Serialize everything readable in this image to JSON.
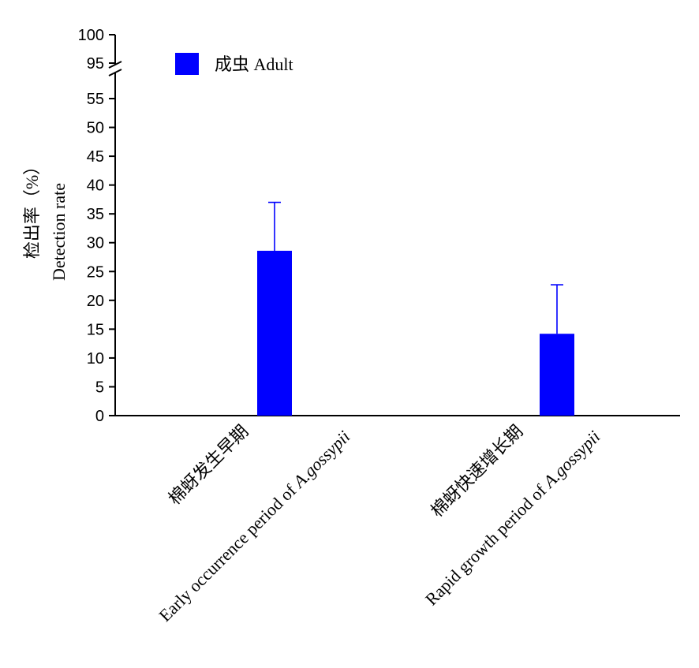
{
  "chart_data": {
    "type": "bar",
    "categories": [
      {
        "line1": "棉蚜发生早期",
        "line2_prefix": "Early occurrence period of ",
        "line2_italic": "A.gossypii"
      },
      {
        "line1": "棉蚜快速增长期",
        "line2_prefix": "Rapid growth period of ",
        "line2_italic": "A.gossypii"
      }
    ],
    "series": [
      {
        "name": "成虫 Adult",
        "color": "#0000ff",
        "values": [
          28.6,
          14.2
        ],
        "error_upper": [
          37.0,
          22.7
        ]
      }
    ],
    "ylabel_line1": "检出率（%）",
    "ylabel_line2": "Detection rate",
    "ylim": [
      0,
      100
    ],
    "axis_break": [
      57,
      95
    ],
    "yticks_lower": [
      0,
      5,
      10,
      15,
      20,
      25,
      30,
      35,
      40,
      45,
      50,
      55
    ],
    "yticks_upper": [
      95,
      100
    ],
    "legend_position": "top-left",
    "grid": false
  }
}
